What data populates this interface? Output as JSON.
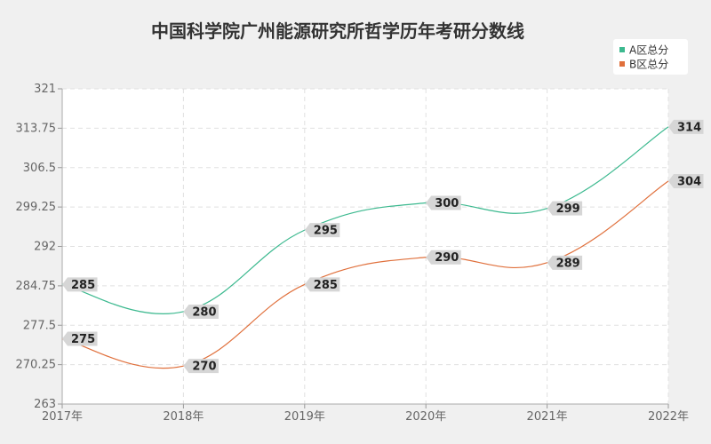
{
  "chart_data": {
    "type": "line",
    "title": "中国科学院广州能源研究所哲学历年考研分数线",
    "xlabel": "",
    "ylabel": "",
    "categories": [
      "2017年",
      "2018年",
      "2019年",
      "2020年",
      "2021年",
      "2022年"
    ],
    "ylim": [
      263,
      321
    ],
    "yticks": [
      "263",
      "270.25",
      "277.5",
      "284.75",
      "292",
      "299.25",
      "306.5",
      "313.75",
      "321"
    ],
    "series": [
      {
        "name": "A区总分",
        "color": "#3cb98f",
        "values": [
          285,
          280,
          295,
          300,
          299,
          314
        ]
      },
      {
        "name": "B区总分",
        "color": "#e0703c",
        "values": [
          275,
          270,
          285,
          290,
          289,
          304
        ]
      }
    ],
    "grid": true,
    "legend_position": "top-right"
  },
  "colors": {
    "background": "#f0f0f0",
    "plot_background": "#ffffff",
    "label_box": "#d6d6d6"
  }
}
